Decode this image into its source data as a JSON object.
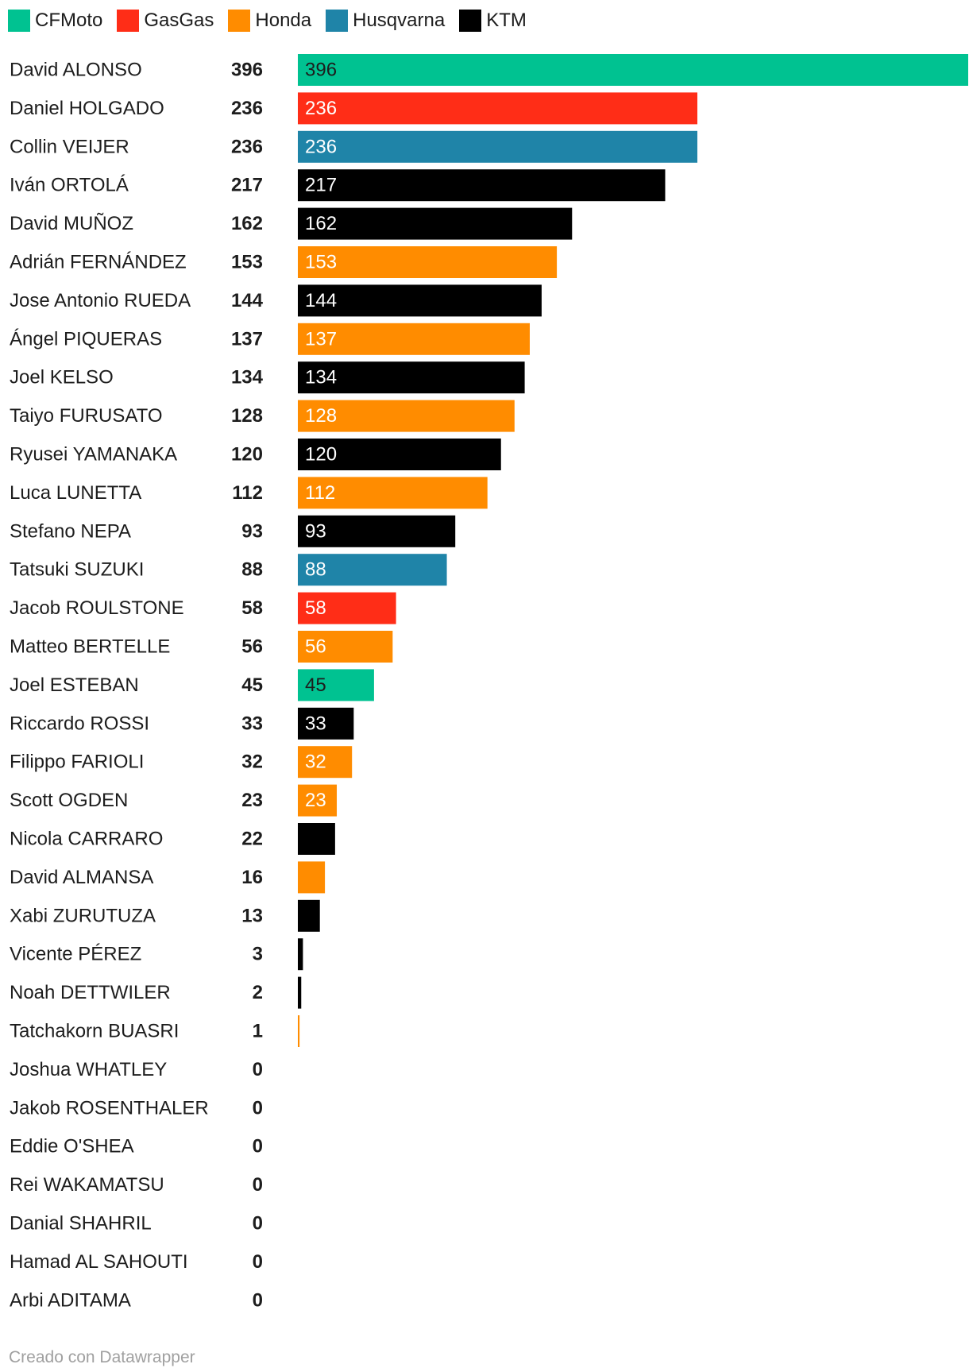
{
  "chart_data": {
    "type": "bar",
    "orientation": "horizontal",
    "legend": [
      {
        "name": "CFMoto",
        "color": "#00c291"
      },
      {
        "name": "GasGas",
        "color": "#ff2d17"
      },
      {
        "name": "Honda",
        "color": "#ff8c00"
      },
      {
        "name": "Husqvarna",
        "color": "#1f84a8"
      },
      {
        "name": "KTM",
        "color": "#000000"
      }
    ],
    "legend_position": "top-left",
    "xlim": [
      0,
      396
    ],
    "grid": false,
    "rows": [
      {
        "name": "David ALONSO",
        "value": 396,
        "team": "CFMoto",
        "show_label": true
      },
      {
        "name": "Daniel HOLGADO",
        "value": 236,
        "team": "GasGas",
        "show_label": true
      },
      {
        "name": "Collin VEIJER",
        "value": 236,
        "team": "Husqvarna",
        "show_label": true
      },
      {
        "name": "Iván ORTOLÁ",
        "value": 217,
        "team": "KTM",
        "show_label": true
      },
      {
        "name": "David MUÑOZ",
        "value": 162,
        "team": "KTM",
        "show_label": true
      },
      {
        "name": "Adrián FERNÁNDEZ",
        "value": 153,
        "team": "Honda",
        "show_label": true
      },
      {
        "name": "Jose Antonio RUEDA",
        "value": 144,
        "team": "KTM",
        "show_label": true
      },
      {
        "name": "Ángel PIQUERAS",
        "value": 137,
        "team": "Honda",
        "show_label": true
      },
      {
        "name": "Joel KELSO",
        "value": 134,
        "team": "KTM",
        "show_label": true
      },
      {
        "name": "Taiyo FURUSATO",
        "value": 128,
        "team": "Honda",
        "show_label": true
      },
      {
        "name": "Ryusei YAMANAKA",
        "value": 120,
        "team": "KTM",
        "show_label": true
      },
      {
        "name": "Luca LUNETTA",
        "value": 112,
        "team": "Honda",
        "show_label": true
      },
      {
        "name": "Stefano NEPA",
        "value": 93,
        "team": "KTM",
        "show_label": true
      },
      {
        "name": "Tatsuki SUZUKI",
        "value": 88,
        "team": "Husqvarna",
        "show_label": true
      },
      {
        "name": "Jacob ROULSTONE",
        "value": 58,
        "team": "GasGas",
        "show_label": true
      },
      {
        "name": "Matteo BERTELLE",
        "value": 56,
        "team": "Honda",
        "show_label": true
      },
      {
        "name": "Joel ESTEBAN",
        "value": 45,
        "team": "CFMoto",
        "show_label": true
      },
      {
        "name": "Riccardo ROSSI",
        "value": 33,
        "team": "KTM",
        "show_label": true
      },
      {
        "name": "Filippo FARIOLI",
        "value": 32,
        "team": "Honda",
        "show_label": true
      },
      {
        "name": "Scott OGDEN",
        "value": 23,
        "team": "Honda",
        "show_label": true
      },
      {
        "name": "Nicola CARRARO",
        "value": 22,
        "team": "KTM",
        "show_label": false
      },
      {
        "name": "David ALMANSA",
        "value": 16,
        "team": "Honda",
        "show_label": false
      },
      {
        "name": "Xabi ZURUTUZA",
        "value": 13,
        "team": "KTM",
        "show_label": false
      },
      {
        "name": "Vicente PÉREZ",
        "value": 3,
        "team": "KTM",
        "show_label": false
      },
      {
        "name": "Noah DETTWILER",
        "value": 2,
        "team": "KTM",
        "show_label": false
      },
      {
        "name": "Tatchakorn BUASRI",
        "value": 1,
        "team": "Honda",
        "show_label": false
      },
      {
        "name": "Joshua WHATLEY",
        "value": 0,
        "team": "",
        "show_label": false
      },
      {
        "name": "Jakob ROSENTHALER",
        "value": 0,
        "team": "",
        "show_label": false
      },
      {
        "name": "Eddie O'SHEA",
        "value": 0,
        "team": "",
        "show_label": false
      },
      {
        "name": "Rei WAKAMATSU",
        "value": 0,
        "team": "",
        "show_label": false
      },
      {
        "name": "Danial SHAHRIL",
        "value": 0,
        "team": "",
        "show_label": false
      },
      {
        "name": "Hamad AL SAHOUTI",
        "value": 0,
        "team": "",
        "show_label": false
      },
      {
        "name": "Arbi ADITAMA",
        "value": 0,
        "team": "",
        "show_label": false
      }
    ]
  },
  "footer": {
    "credit": "Creado con Datawrapper"
  }
}
